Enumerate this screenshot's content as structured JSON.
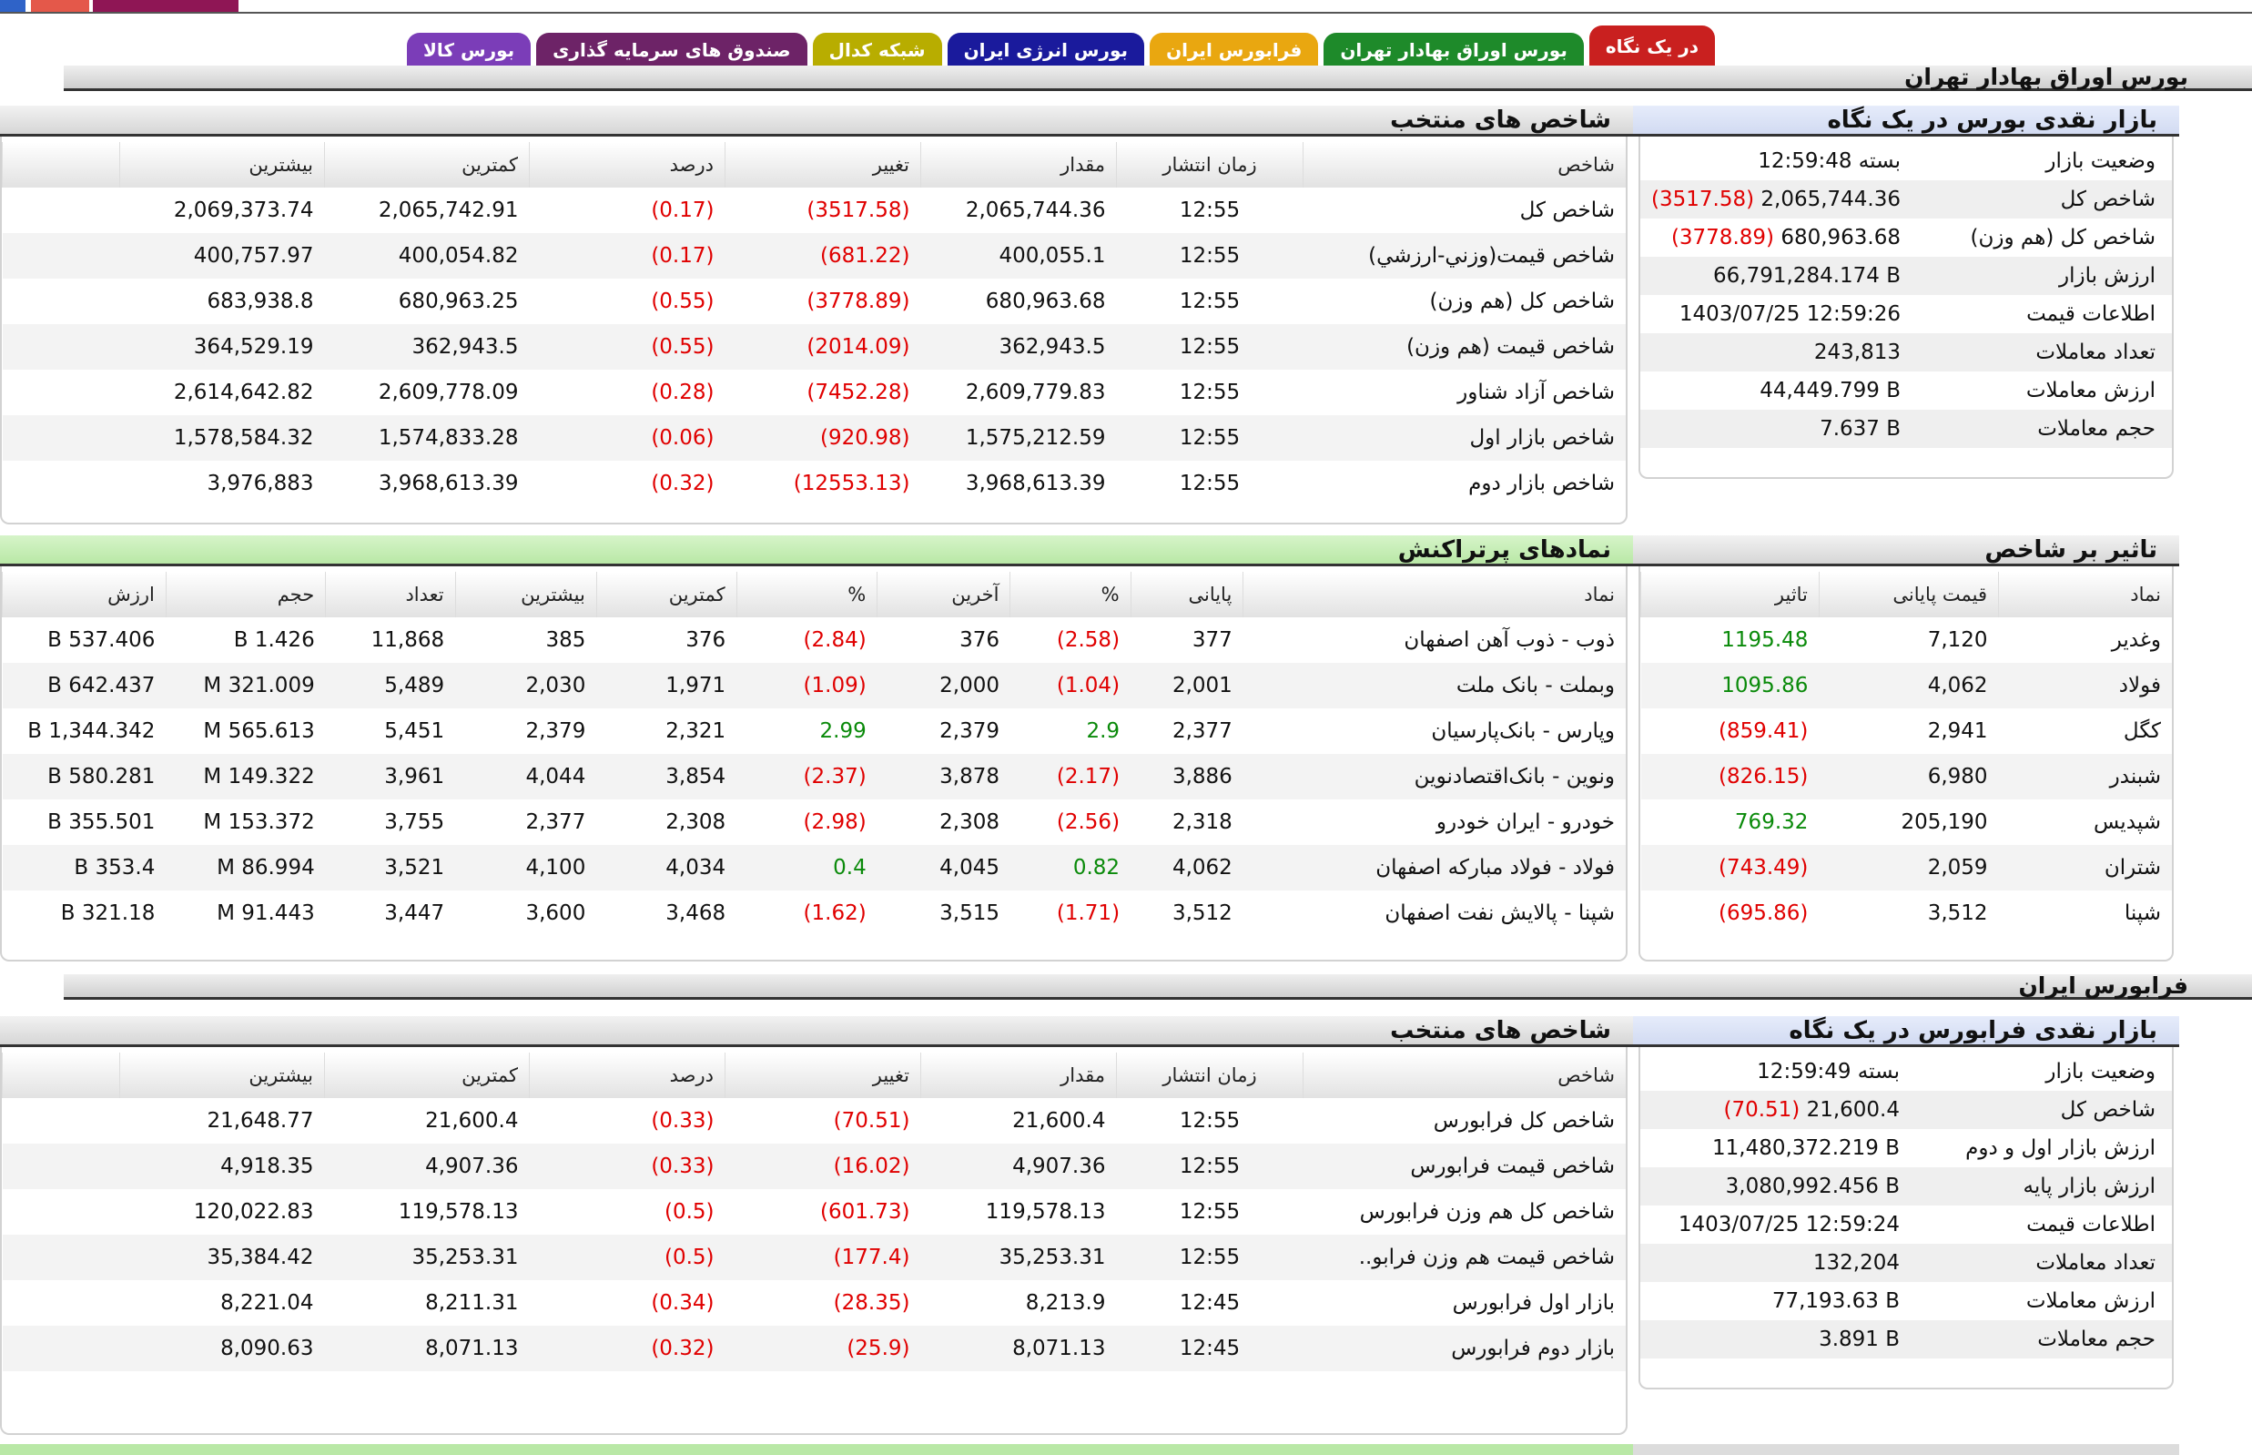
{
  "tabs": [
    {
      "label": "در یک نگاه",
      "color": "#c9201f",
      "active": true
    },
    {
      "label": "بورس اوراق بهادار تهران",
      "color": "#1e8a2a",
      "active": false
    },
    {
      "label": "فرابورس ایران",
      "color": "#e9a710",
      "active": false
    },
    {
      "label": "بورس انرژی ایران",
      "color": "#1a1a9c",
      "active": false
    },
    {
      "label": "شبکه کدال",
      "color": "#b8ad00",
      "active": false
    },
    {
      "label": "صندوق های سرمایه گذاری",
      "color": "#6d2367",
      "active": false
    },
    {
      "label": "بورس کالا",
      "color": "#7b3db8",
      "active": false
    }
  ],
  "tse": {
    "section_title": "بورس اوراق بهادار تهران",
    "glance": {
      "title": "بازار نقدی بورس در یک نگاه",
      "rows": [
        {
          "label": "وضعیت بازار",
          "value": "بسته 12:59:48",
          "change": ""
        },
        {
          "label": "شاخص کل",
          "value": "2,065,744.36",
          "change": "(3517.58)"
        },
        {
          "label": "شاخص کل (هم وزن)",
          "value": "680,963.68",
          "change": "(3778.89)"
        },
        {
          "label": "ارزش بازار",
          "value": "66,791,284.174 B",
          "change": ""
        },
        {
          "label": "اطلاعات قیمت",
          "value": "1403/07/25 12:59:26",
          "change": ""
        },
        {
          "label": "تعداد معاملات",
          "value": "243,813",
          "change": ""
        },
        {
          "label": "ارزش معاملات",
          "value": "44,449.799 B",
          "change": ""
        },
        {
          "label": "حجم معاملات",
          "value": "7.637 B",
          "change": ""
        }
      ]
    },
    "indices": {
      "title": "شاخص های منتخب",
      "headers": [
        "شاخص",
        "زمان انتشار",
        "مقدار",
        "تغییر",
        "درصد",
        "کمترین",
        "بیشترین"
      ],
      "rows": [
        [
          "شاخص کل",
          "12:55",
          "2,065,744.36",
          "(3517.58)",
          "(0.17)",
          "2,065,742.91",
          "2,069,373.74"
        ],
        [
          "شاخص قیمت(وزني-ارزشي)",
          "12:55",
          "400,055.1",
          "(681.22)",
          "(0.17)",
          "400,054.82",
          "400,757.97"
        ],
        [
          "شاخص کل (هم وزن)",
          "12:55",
          "680,963.68",
          "(3778.89)",
          "(0.55)",
          "680,963.25",
          "683,938.8"
        ],
        [
          "شاخص قیمت (هم وزن)",
          "12:55",
          "362,943.5",
          "(2014.09)",
          "(0.55)",
          "362,943.5",
          "364,529.19"
        ],
        [
          "شاخص آزاد شناور",
          "12:55",
          "2,609,779.83",
          "(7452.28)",
          "(0.28)",
          "2,609,778.09",
          "2,614,642.82"
        ],
        [
          "شاخص بازار اول",
          "12:55",
          "1,575,212.59",
          "(920.98)",
          "(0.06)",
          "1,574,833.28",
          "1,578,584.32"
        ],
        [
          "شاخص بازار دوم",
          "12:55",
          "3,968,613.39",
          "(12553.13)",
          "(0.32)",
          "3,968,613.39",
          "3,976,883"
        ]
      ]
    },
    "impact": {
      "title": "تاثیر بر شاخص",
      "headers": [
        "نماد",
        "قیمت پایانی",
        "تاثیر"
      ],
      "rows": [
        [
          "وغدیر",
          "7,120",
          "1195.48"
        ],
        [
          "فولاد",
          "4,062",
          "1095.86"
        ],
        [
          "کگل",
          "2,941",
          "(859.41)"
        ],
        [
          "شبندر",
          "6,980",
          "(826.15)"
        ],
        [
          "شپدیس",
          "205,190",
          "769.32"
        ],
        [
          "شتران",
          "2,059",
          "(743.49)"
        ],
        [
          "شپنا",
          "3,512",
          "(695.86)"
        ]
      ]
    },
    "active_symbols": {
      "title": "نمادهای پرتراکنش",
      "headers": [
        "نماد",
        "پایانی",
        "%",
        "آخرین",
        "%",
        "کمترین",
        "بیشترین",
        "تعداد",
        "حجم",
        "ارزش"
      ],
      "rows": [
        [
          "ذوب - ذوب آهن اصفهان",
          "377",
          "(2.58)",
          "376",
          "(2.84)",
          "376",
          "385",
          "11,868",
          "1.426 B",
          "537.406 B"
        ],
        [
          "وبملت - بانک ملت",
          "2,001",
          "(1.04)",
          "2,000",
          "(1.09)",
          "1,971",
          "2,030",
          "5,489",
          "321.009 M",
          "642.437 B"
        ],
        [
          "وپارس - بانک‌پارسیان",
          "2,377",
          "2.9",
          "2,379",
          "2.99",
          "2,321",
          "2,379",
          "5,451",
          "565.613 M",
          "1,344.342 B"
        ],
        [
          "ونوین - بانک‌اقتصادنوین",
          "3,886",
          "(2.17)",
          "3,878",
          "(2.37)",
          "3,854",
          "4,044",
          "3,961",
          "149.322 M",
          "580.281 B"
        ],
        [
          "خودرو - ایران‌ خودرو",
          "2,318",
          "(2.56)",
          "2,308",
          "(2.98)",
          "2,308",
          "2,377",
          "3,755",
          "153.372 M",
          "355.501 B"
        ],
        [
          "فولاد - فولاد مبارکه اصفهان",
          "4,062",
          "0.82",
          "4,045",
          "0.4",
          "4,034",
          "4,100",
          "3,521",
          "86.994 M",
          "353.4 B"
        ],
        [
          "شپنا - پالایش نفت اصفهان",
          "3,512",
          "(1.71)",
          "3,515",
          "(1.62)",
          "3,468",
          "3,600",
          "3,447",
          "91.443 M",
          "321.18 B"
        ]
      ]
    }
  },
  "ifb": {
    "section_title": "فرابورس ایران",
    "glance": {
      "title": "بازار نقدی فرابورس در یک نگاه",
      "rows": [
        {
          "label": "وضعیت بازار",
          "value": "بسته 12:59:49",
          "change": ""
        },
        {
          "label": "شاخص کل",
          "value": "21,600.4",
          "change": "(70.51)"
        },
        {
          "label": "ارزش بازار اول و دوم",
          "value": "11,480,372.219 B",
          "change": ""
        },
        {
          "label": "ارزش بازار پایه",
          "value": "3,080,992.456 B",
          "change": ""
        },
        {
          "label": "اطلاعات قیمت",
          "value": "1403/07/25 12:59:24",
          "change": ""
        },
        {
          "label": "تعداد معاملات",
          "value": "132,204",
          "change": ""
        },
        {
          "label": "ارزش معاملات",
          "value": "77,193.63 B",
          "change": ""
        },
        {
          "label": "حجم معاملات",
          "value": "3.891 B",
          "change": ""
        }
      ]
    },
    "indices": {
      "title": "شاخص های منتخب",
      "headers": [
        "شاخص",
        "زمان انتشار",
        "مقدار",
        "تغییر",
        "درصد",
        "کمترین",
        "بیشترین"
      ],
      "rows": [
        [
          "شاخص کل فرابورس",
          "12:55",
          "21,600.4",
          "(70.51)",
          "(0.33)",
          "21,600.4",
          "21,648.77"
        ],
        [
          "شاخص قیمت فرابورس",
          "12:55",
          "4,907.36",
          "(16.02)",
          "(0.33)",
          "4,907.36",
          "4,918.35"
        ],
        [
          "شاخص کل هم وزن فرابورس",
          "12:55",
          "119,578.13",
          "(601.73)",
          "(0.5)",
          "119,578.13",
          "120,022.83"
        ],
        [
          "شاخص قیمت هم وزن فرابو..",
          "12:55",
          "35,253.31",
          "(177.4)",
          "(0.5)",
          "35,253.31",
          "35,384.42"
        ],
        [
          "بازار اول فرابورس",
          "12:45",
          "8,213.9",
          "(28.35)",
          "(0.34)",
          "8,211.31",
          "8,221.04"
        ],
        [
          "بازار دوم فرابورس",
          "12:45",
          "8,071.13",
          "(25.9)",
          "(0.32)",
          "8,071.13",
          "8,090.63"
        ]
      ]
    }
  }
}
